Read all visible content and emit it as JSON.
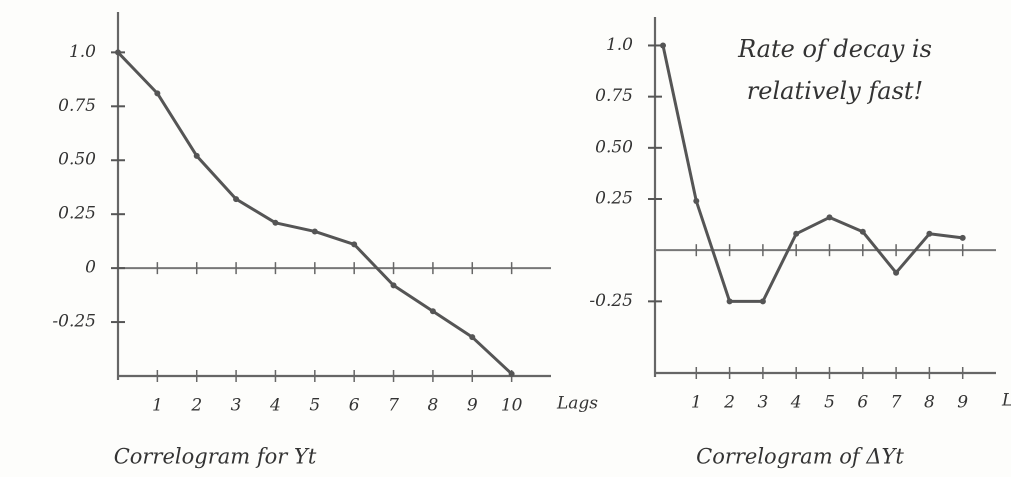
{
  "chart_data": [
    {
      "type": "line",
      "title": "Correlogram for Yt",
      "xlabel": "Lags",
      "x": [
        0,
        1,
        2,
        3,
        4,
        5,
        6,
        7,
        8,
        9,
        10
      ],
      "values": [
        1.0,
        0.81,
        0.52,
        0.32,
        0.21,
        0.17,
        0.11,
        -0.08,
        -0.2,
        -0.32,
        -0.49
      ],
      "color": "#555555",
      "xlim": [
        0,
        11
      ],
      "xticks": [
        1,
        2,
        3,
        4,
        5,
        6,
        7,
        8,
        9,
        10
      ],
      "ylim": [
        -0.5,
        1.15
      ],
      "yticks": [
        {
          "value": 1,
          "label": "1.0"
        },
        0.75,
        {
          "value": 0.5,
          "label": "0.50"
        },
        0.25,
        0,
        -0.25
      ],
      "grid": false
    },
    {
      "type": "line",
      "title": "Correlogram of ΔYt",
      "xlabel": "Lags",
      "annotation": "Rate of decay is relatively fast!",
      "x": [
        0,
        1,
        2,
        3,
        4,
        5,
        6,
        7,
        8,
        9
      ],
      "values": [
        1.0,
        0.24,
        -0.25,
        -0.25,
        0.08,
        0.16,
        0.09,
        -0.11,
        0.08,
        0.06
      ],
      "color": "#555555",
      "xlim": [
        -0.3,
        10
      ],
      "xticks": [
        1,
        2,
        3,
        4,
        5,
        6,
        7,
        8,
        9
      ],
      "ylim": [
        -0.6,
        1.1
      ],
      "yticks": [
        {
          "value": 1,
          "label": "1.0"
        },
        0.75,
        {
          "value": 0.5,
          "label": "0.50"
        },
        0.25,
        -0.25
      ],
      "grid": false
    }
  ]
}
